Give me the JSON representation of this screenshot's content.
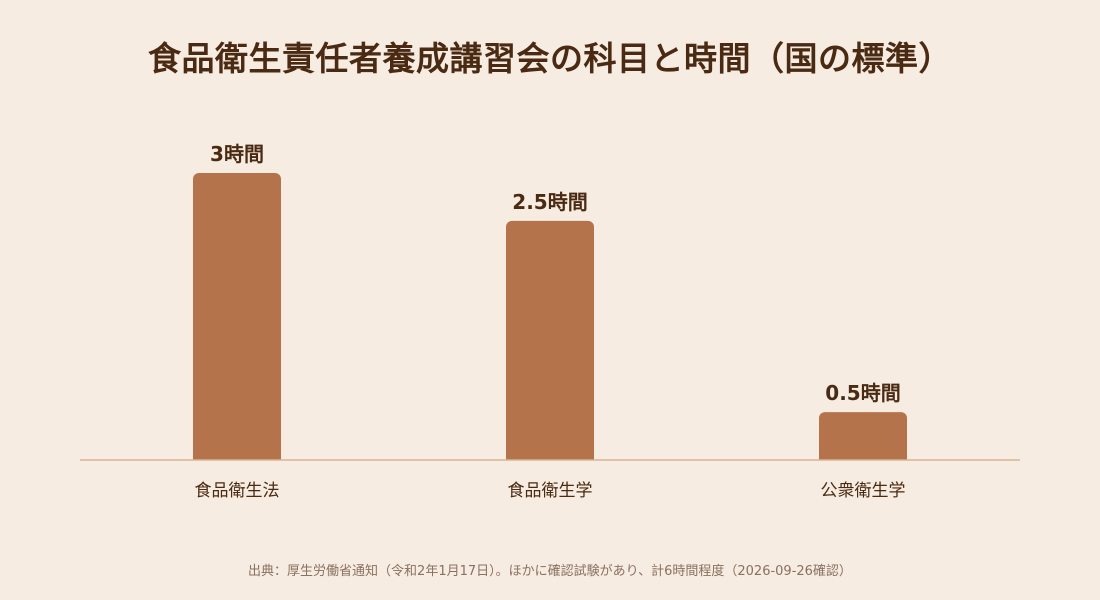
{
  "chart_data": {
    "type": "bar",
    "title": "食品衛生責任者養成講習会の科目と時間（国の標準）",
    "categories": [
      "食品衛生法",
      "食品衛生学",
      "公衆衛生学"
    ],
    "values": [
      3,
      2.5,
      0.5
    ],
    "value_labels": [
      "3時間",
      "2.5時間",
      "0.5時間"
    ],
    "unit": "時間",
    "ylim": [
      0,
      3
    ],
    "grid": false,
    "legend": "none",
    "bar_color": "#b5734b"
  },
  "source": "出典：厚生労働省通知（令和2年1月17日）。ほかに確認試験があり、計6時間程度（2026-09-26確認）"
}
